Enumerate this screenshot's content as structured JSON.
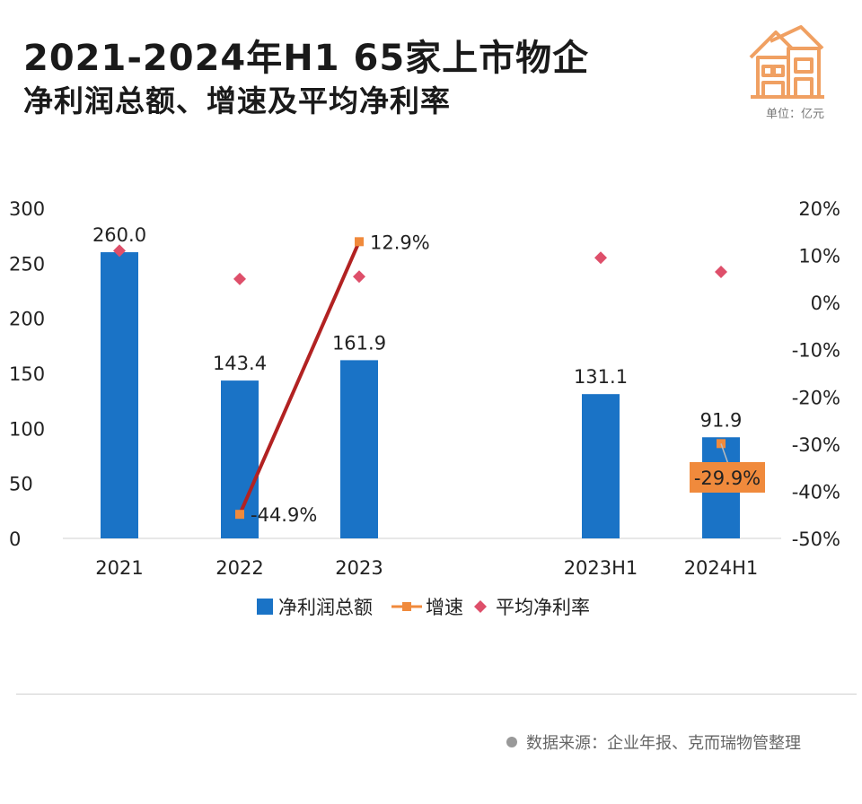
{
  "header": {
    "title_line1": "2021-2024年H1 65家上市物企",
    "title_line2": "净利润总额、增速及平均净利率",
    "unit": "单位：亿元",
    "logo_icon": "house-icon"
  },
  "footer": {
    "source": "数据来源：企业年报、克而瑞物管整理"
  },
  "colors": {
    "bar": "#1a73c6",
    "growth_line": "#b22222",
    "growth_marker": "#f08a3c",
    "growth_label_bg": "#f08a3c",
    "margin_marker": "#de4f6a"
  },
  "chart_data": {
    "type": "bar",
    "categories": [
      "2021",
      "2022",
      "2023",
      "2023H1",
      "2024H1"
    ],
    "y_left": {
      "ticks": [
        "300",
        "250",
        "200",
        "150",
        "100",
        "50",
        "0"
      ],
      "ylim": [
        0,
        300
      ]
    },
    "y_right": {
      "ticks": [
        "20%",
        "10%",
        "0%",
        "-10%",
        "-20%",
        "-30%",
        "-40%",
        "-50%"
      ],
      "ylim": [
        -50,
        20
      ]
    },
    "legend": {
      "position": "bottom"
    },
    "series": [
      {
        "name": "净利润总额",
        "type": "bar",
        "axis": "left",
        "values": [
          260.0,
          143.4,
          161.9,
          131.1,
          91.9
        ],
        "labels": [
          "260.0",
          "143.4",
          "161.9",
          "131.1",
          "91.9"
        ]
      },
      {
        "name": "增速",
        "type": "line",
        "axis": "right",
        "values": [
          null,
          -44.9,
          12.9,
          null,
          -29.9
        ],
        "labels": [
          "",
          "-44.9%",
          "12.9%",
          "",
          "-29.9%"
        ]
      },
      {
        "name": "平均净利率",
        "type": "scatter",
        "axis": "right",
        "values": [
          11,
          5,
          5.5,
          9.5,
          6.5
        ]
      }
    ]
  }
}
